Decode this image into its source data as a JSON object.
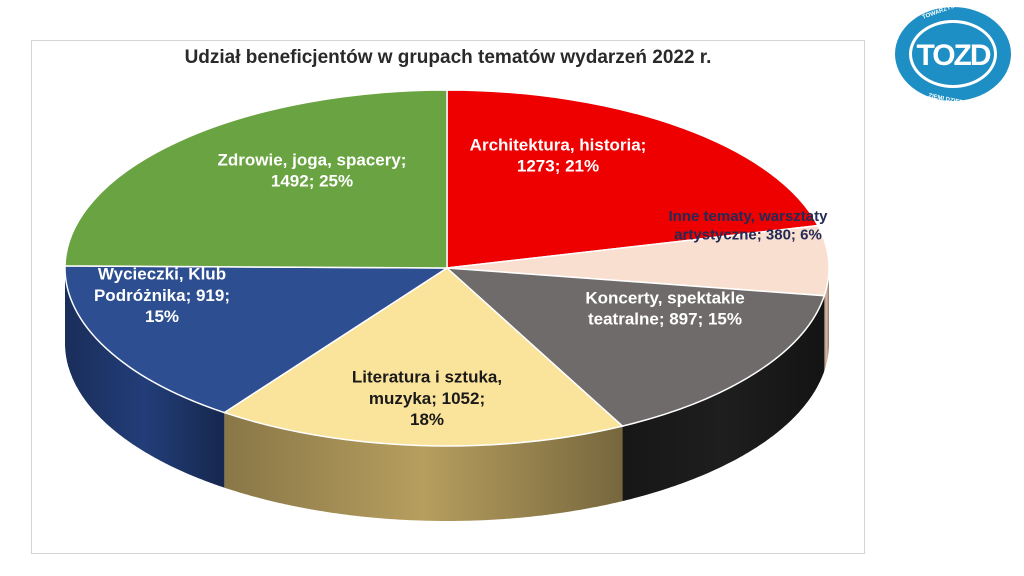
{
  "chart_data": {
    "type": "pie",
    "title": "Udział beneficjentów w grupach tematów wydarzeń 2022 r.",
    "slices": [
      {
        "name": "Architektura, historia",
        "value": 1273,
        "percent": 21,
        "label_lines": [
          "Architektura, historia;",
          "1273; 21%"
        ],
        "color": "#ee0000",
        "side": "#ee0000",
        "text_color": "#ffffff"
      },
      {
        "name": "Inne tematy, warsztaty artystyczne",
        "value": 380,
        "percent": 6,
        "label_lines": [
          "Inne tematy, warsztaty",
          "artystyczne; 380; 6%"
        ],
        "color": "#f8dfcf",
        "side": "#d9b8a4",
        "text_color": "#222a55"
      },
      {
        "name": "Koncerty, spektakle teatralne",
        "value": 897,
        "percent": 15,
        "label_lines": [
          "Koncerty, spektakle",
          "teatralne; 897; 15%"
        ],
        "color": "#706b6b",
        "side": "#1e1e1e",
        "text_color": "#ffffff"
      },
      {
        "name": "Literatura i sztuka, muzyka",
        "value": 1052,
        "percent": 18,
        "label_lines": [
          "Literatura i sztuka,",
          "muzyka; 1052;",
          "18%"
        ],
        "color": "#fae39a",
        "side": "#b69e5e",
        "text_color": "#1a1a1a"
      },
      {
        "name": "Wycieczki, Klub Podróżnika",
        "value": 919,
        "percent": 15,
        "label_lines": [
          "Wycieczki, Klub",
          "Podróżnika; 919;",
          "15%"
        ],
        "color": "#2d4f92",
        "side": "#223d78",
        "text_color": "#ffffff"
      },
      {
        "name": "Zdrowie, joga, spacery",
        "value": 1492,
        "percent": 25,
        "label_lines": [
          "Zdrowie, joga, spacery;",
          "1492; 25%"
        ],
        "color": "#6aa341",
        "side": "#4e7d2e",
        "text_color": "#ffffff"
      }
    ],
    "start_angle_deg": 270,
    "direction": "clockwise",
    "style": "3d-pie"
  },
  "logo": {
    "monogram": "TOZD",
    "ring_text": "TOWARZYSTWO OŚWIATOWE ZIEMI DZIERŻONIOWSKIEJ",
    "color": "#1e8fc4"
  }
}
